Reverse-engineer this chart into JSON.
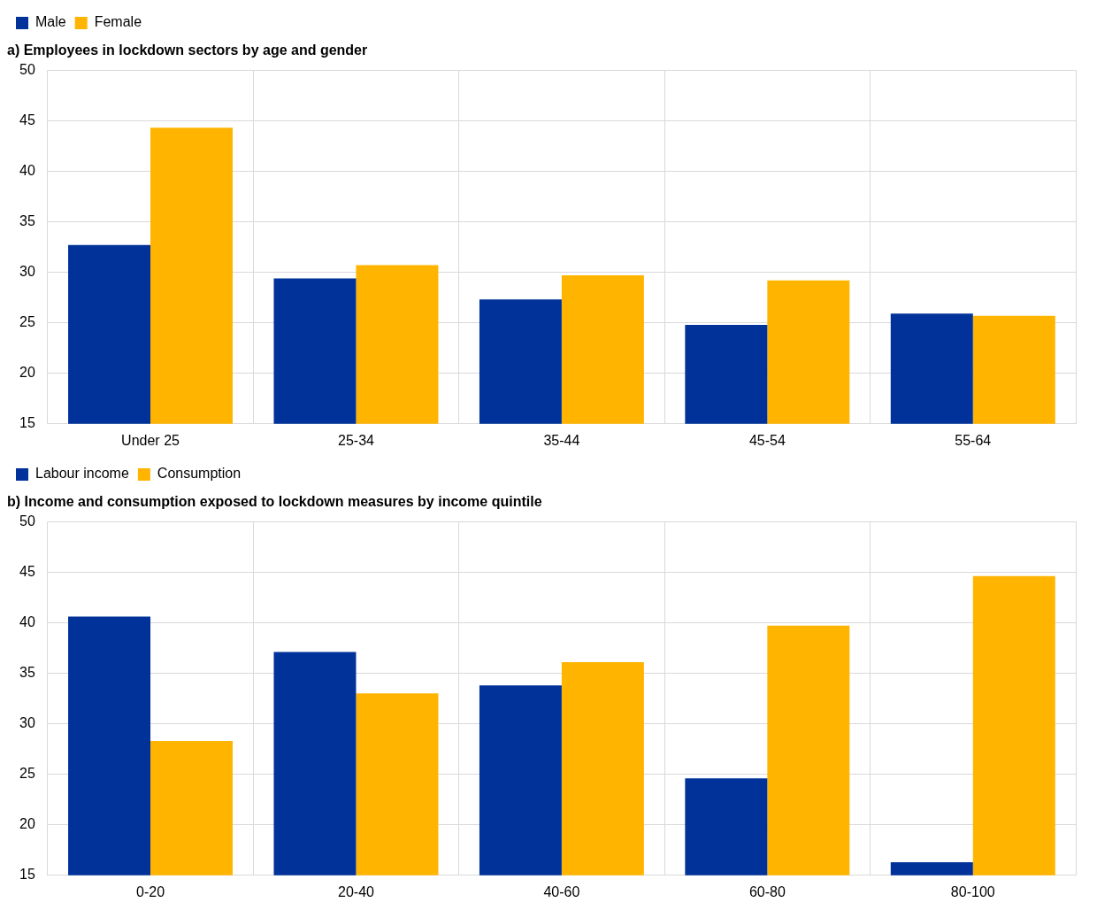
{
  "chart_data": [
    {
      "type": "bar",
      "title": "a) Employees in lockdown sectors by age and gender",
      "categories": [
        "Under 25",
        "25-34",
        "35-44",
        "45-54",
        "55-64"
      ],
      "series": [
        {
          "name": "Male",
          "color": "#003299",
          "values": [
            32.7,
            29.4,
            27.3,
            24.8,
            25.9
          ]
        },
        {
          "name": "Female",
          "color": "#ffb400",
          "values": [
            44.3,
            30.7,
            29.7,
            29.2,
            25.7
          ]
        }
      ],
      "ylim": [
        15,
        50
      ],
      "yticks": [
        15,
        20,
        25,
        30,
        35,
        40,
        45,
        50
      ],
      "grid": true,
      "legend": "top left"
    },
    {
      "type": "bar",
      "title": "b) Income and consumption exposed to lockdown measures by income quintile",
      "categories": [
        "0-20",
        "20-40",
        "40-60",
        "60-80",
        "80-100"
      ],
      "series": [
        {
          "name": "Labour income",
          "color": "#003299",
          "values": [
            40.6,
            37.1,
            33.8,
            24.6,
            16.3
          ]
        },
        {
          "name": "Consumption",
          "color": "#ffb400",
          "values": [
            28.3,
            33.0,
            36.1,
            39.7,
            44.6
          ]
        }
      ],
      "ylim": [
        15,
        50
      ],
      "yticks": [
        15,
        20,
        25,
        30,
        35,
        40,
        45,
        50
      ],
      "grid": true,
      "legend": "top left"
    }
  ]
}
